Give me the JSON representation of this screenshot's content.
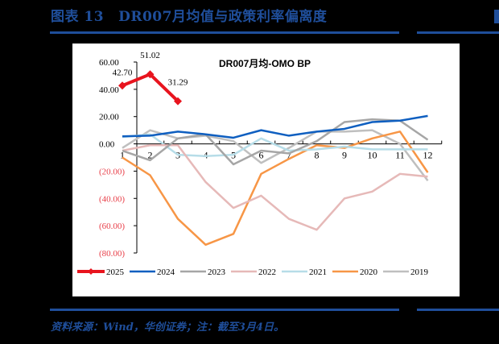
{
  "header": {
    "figure_number": "图表 13",
    "title": "DR007月均值与政策利率偏离度"
  },
  "footer": {
    "source": "资料来源：Wind，华创证券；注：截至3月4日。"
  },
  "colors": {
    "brand_blue": "#1F4E9A",
    "negative_label": "#E8404A"
  },
  "chart_data": {
    "type": "line",
    "title": "DR007月均-OMO BP",
    "xlabel": "",
    "ylabel": "",
    "categories": [
      "1",
      "2",
      "3",
      "4",
      "5",
      "6",
      "7",
      "8",
      "9",
      "10",
      "11",
      "12"
    ],
    "ylim": [
      -80,
      60
    ],
    "yticks": [
      60,
      40,
      20,
      0,
      -20,
      -40,
      -60,
      -80
    ],
    "ytick_labels": [
      "60.00",
      "40.00",
      "20.00",
      "0.00",
      "(20.00)",
      "(40.00)",
      "(60.00)",
      "(80.00)"
    ],
    "grid": false,
    "legend_position": "bottom",
    "series": [
      {
        "name": "2025",
        "color": "#E8141E",
        "width": 4,
        "marker": "diamond",
        "values": [
          42.7,
          51.02,
          31.29
        ],
        "data_labels": [
          "42.70",
          "51.02",
          "31.29"
        ]
      },
      {
        "name": "2024",
        "color": "#0F5FC0",
        "width": 2.5,
        "values": [
          5.5,
          6,
          9,
          7,
          4.5,
          10,
          6,
          9,
          11,
          16,
          17,
          20.5
        ]
      },
      {
        "name": "2023",
        "color": "#A6A6A6",
        "width": 2.5,
        "values": [
          -5,
          -12,
          4,
          7,
          -15,
          -5,
          -7,
          2,
          16,
          18,
          17,
          3
        ]
      },
      {
        "name": "2022",
        "color": "#E6B9B8",
        "width": 2.5,
        "values": [
          -5,
          -1,
          -1,
          -28,
          -47,
          -38,
          -55,
          -63,
          -40,
          -35,
          -22,
          -24
        ]
      },
      {
        "name": "2021",
        "color": "#B7DDE8",
        "width": 2.5,
        "values": [
          5,
          7,
          -8,
          -9,
          -8,
          4,
          -5,
          -4,
          -2,
          -4,
          -4,
          -4
        ]
      },
      {
        "name": "2020",
        "color": "#F79646",
        "width": 2.5,
        "values": [
          -10,
          -23,
          -55,
          -74,
          -66,
          -22,
          -11,
          -1,
          -3,
          4,
          9,
          -21
        ]
      },
      {
        "name": "2019",
        "color": "#BFBFBF",
        "width": 2.5,
        "values": [
          -3,
          10,
          4,
          6,
          2,
          -14,
          -3,
          9,
          9,
          10,
          0,
          -27
        ]
      }
    ]
  }
}
